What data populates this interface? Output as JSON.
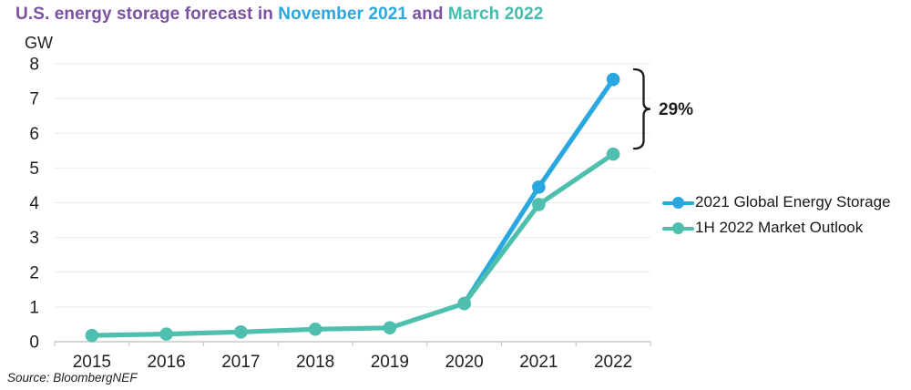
{
  "title": {
    "segments": [
      {
        "text": "U.S. energy storage forecast in ",
        "color": "#7A52A1"
      },
      {
        "text": "November 2021",
        "color": "#29A7DF"
      },
      {
        "text": " and ",
        "color": "#7A52A1"
      },
      {
        "text": "March 2022",
        "color": "#45BCAB"
      }
    ]
  },
  "chart_data": {
    "type": "line",
    "unit_label": "GW",
    "categories": [
      "2015",
      "2016",
      "2017",
      "2018",
      "2019",
      "2020",
      "2021",
      "2022"
    ],
    "series": [
      {
        "name": "2021 Global Energy Storage",
        "color": "#29A7DF",
        "values": [
          null,
          null,
          null,
          null,
          null,
          1.1,
          4.45,
          7.55
        ]
      },
      {
        "name": "1H 2022 Market Outlook",
        "color": "#4DBFAC",
        "values": [
          0.18,
          0.22,
          0.28,
          0.36,
          0.4,
          1.1,
          3.95,
          5.4
        ]
      }
    ],
    "ylim": [
      0,
      8
    ],
    "y_ticks": [
      0,
      1,
      2,
      3,
      4,
      5,
      6,
      7,
      8
    ],
    "grid": true,
    "legend_position": "right",
    "annotation": {
      "label": "29%",
      "from_series": 0,
      "to_series": 1,
      "at_category": "2022"
    }
  },
  "source": "Source: BloombergNEF"
}
